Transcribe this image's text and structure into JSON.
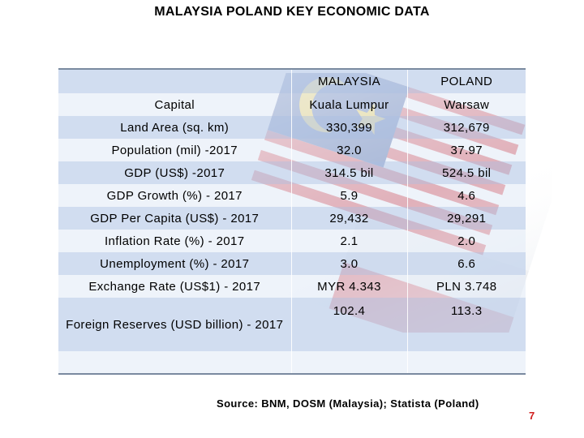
{
  "title": "MALAYSIA POLAND KEY ECONOMIC DATA",
  "table": {
    "columns": [
      "",
      "MALAYSIA",
      "POLAND"
    ],
    "rows": [
      {
        "label": "Capital",
        "malaysia": "Kuala Lumpur",
        "poland": "Warsaw"
      },
      {
        "label": "Land Area (sq. km)",
        "malaysia": "330,399",
        "poland": "312,679"
      },
      {
        "label": "Population (mil) -2017",
        "malaysia": "32.0",
        "poland": "37.97"
      },
      {
        "label": "GDP (US$) -2017",
        "malaysia": "314.5 bil",
        "poland": "524.5 bil"
      },
      {
        "label": "GDP Growth (%) - 2017",
        "malaysia": "5.9",
        "poland": "4.6"
      },
      {
        "label": "GDP Per Capita (US$) - 2017",
        "malaysia": "29,432",
        "poland": "29,291"
      },
      {
        "label": "Inflation Rate (%) - 2017",
        "malaysia": "2.1",
        "poland": "2.0"
      },
      {
        "label": "Unemployment (%) - 2017",
        "malaysia": "3.0",
        "poland": "6.6"
      },
      {
        "label": "Exchange Rate (US$1) - 2017",
        "malaysia": "MYR 4.343",
        "poland": "PLN 3.748"
      },
      {
        "label": "Foreign Reserves (USD billion) - 2017",
        "malaysia": "102.4",
        "poland": "113.3"
      },
      {
        "label": "",
        "malaysia": "",
        "poland": ""
      }
    ]
  },
  "source": "Source: BNM, DOSM (Malaysia); Statista (Poland)",
  "page_number": "7",
  "colors": {
    "row_odd": "#c4d3ec",
    "row_even": "#e4ebf7",
    "rule": "#7a8aa0",
    "page_number": "#d01f1f",
    "flag_red": "#d8343c",
    "flag_blue": "#1f3f8f",
    "flag_yellow": "#f5c718"
  }
}
